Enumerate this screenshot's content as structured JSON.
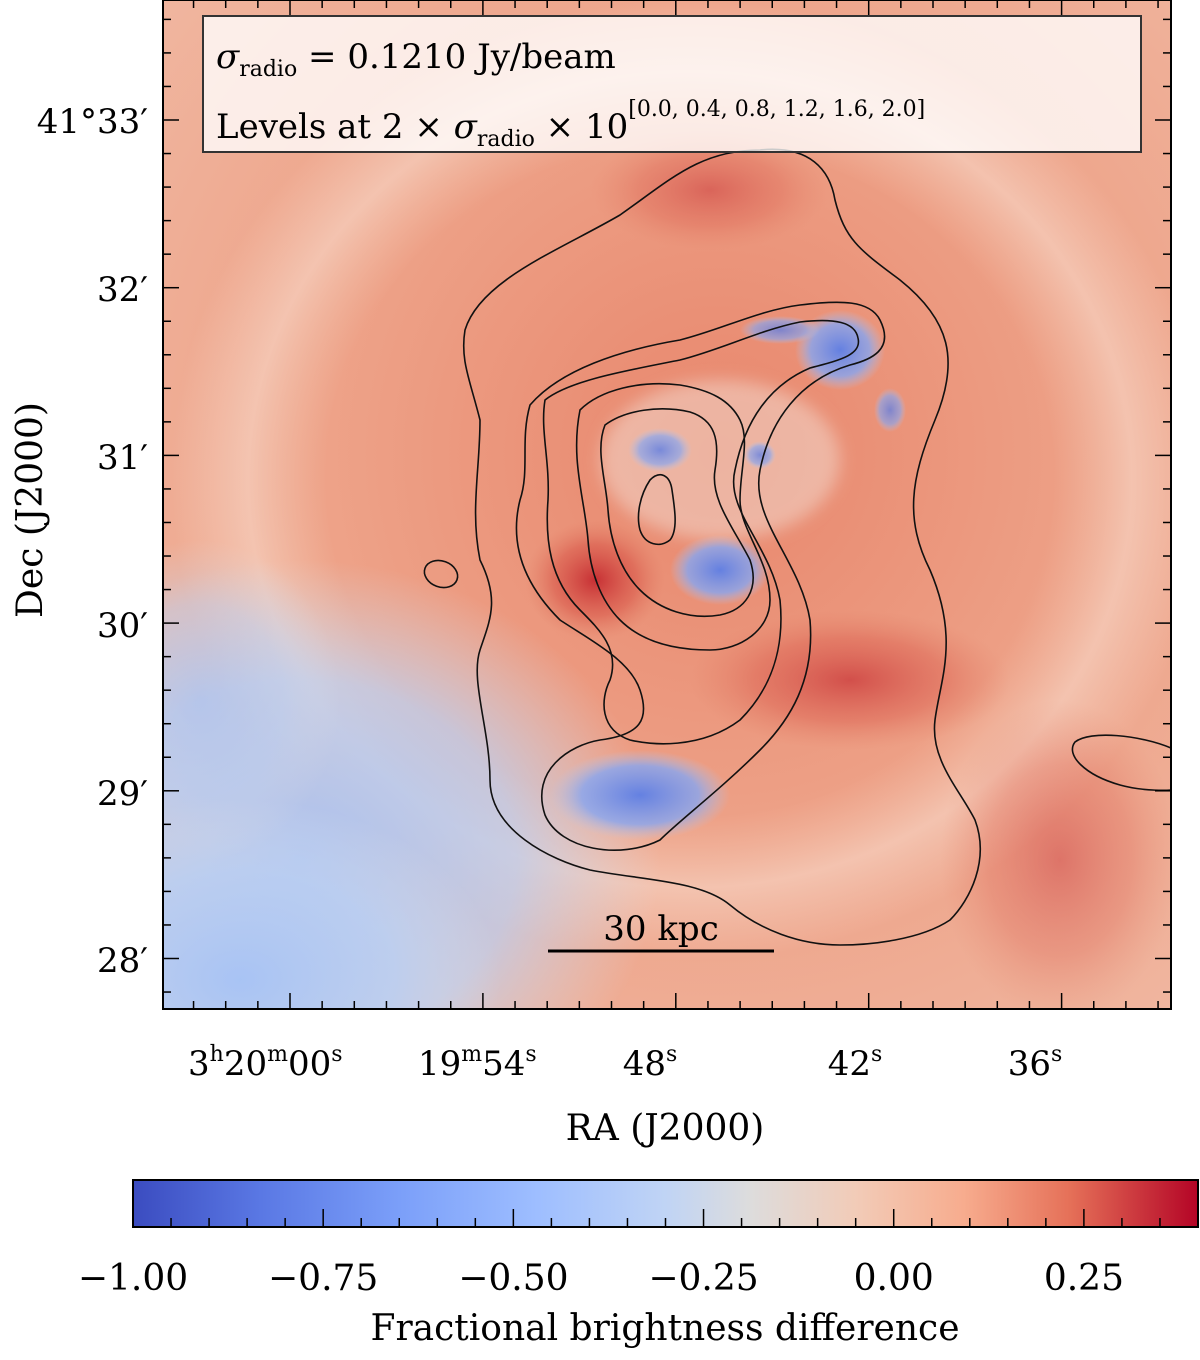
{
  "chart_data": {
    "type": "heatmap",
    "xlabel": "RA (J2000)",
    "ylabel": "Dec (J2000)",
    "x_ticks": [
      {
        "main": "3",
        "sup1": "h",
        "mid": "20",
        "sup2": "m",
        "end": "00",
        "sup3": "s"
      },
      {
        "main": "19",
        "sup1": "m",
        "mid": "54",
        "sup2": "s"
      },
      {
        "main": "48",
        "sup1": "s"
      },
      {
        "main": "42",
        "sup1": "s"
      },
      {
        "main": "36",
        "sup1": "s"
      }
    ],
    "y_ticks": [
      "41°33′",
      "32′",
      "31′",
      "30′",
      "29′",
      "28′"
    ],
    "annotation": {
      "line1_symbol": "σ",
      "line1_sub": "radio",
      "line1_rest": " = 0.1210 Jy/beam",
      "line2_prefix": "Levels at 2 × ",
      "line2_symbol": "σ",
      "line2_sub": "radio",
      "line2_mid": " × 10",
      "line2_sup": "[0.0, 0.4, 0.8, 1.2, 1.6, 2.0]"
    },
    "scalebar_label": "30 kpc",
    "colorbar": {
      "label": "Fractional brightness difference",
      "ticks": [
        "−1.00",
        "−0.75",
        "−0.50",
        "−0.25",
        "0.00",
        "0.25"
      ],
      "tick_values": [
        -1.0,
        -0.75,
        -0.5,
        -0.25,
        0.0,
        0.25
      ],
      "range": [
        -1.0,
        0.4
      ],
      "colormap": "coolwarm"
    },
    "colors": {
      "cold": "#3b4cc0",
      "neutral": "#dddddd",
      "warm": "#b40426"
    }
  }
}
